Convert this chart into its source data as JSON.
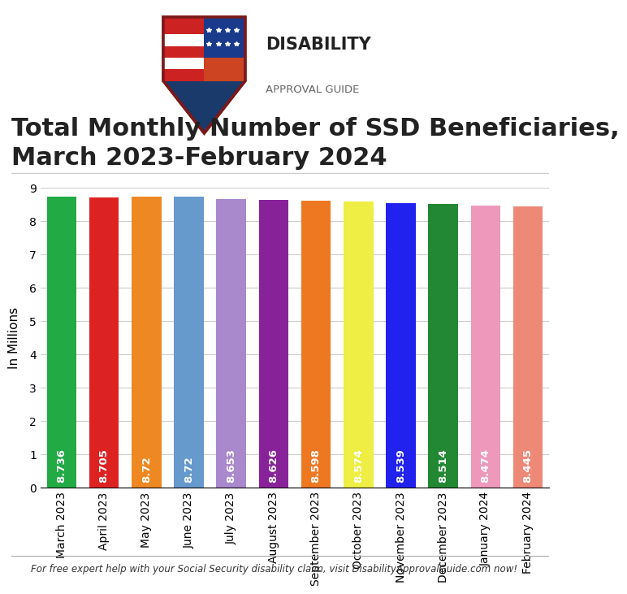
{
  "title": "Total Monthly Number of SSD Beneficiaries,\nMarch 2023-February 2024",
  "ylabel": "In Millions",
  "categories": [
    "March 2023",
    "April 2023",
    "May 2023",
    "June 2023",
    "July 2023",
    "August 2023",
    "September 2023",
    "October 2023",
    "November 2023",
    "December 2023",
    "January 2024",
    "February 2024"
  ],
  "values": [
    8.736,
    8.705,
    8.72,
    8.72,
    8.653,
    8.626,
    8.598,
    8.574,
    8.539,
    8.514,
    8.474,
    8.445
  ],
  "bar_colors": [
    "#22aa44",
    "#dd2222",
    "#ee8822",
    "#6699cc",
    "#aa88cc",
    "#882299",
    "#ee7722",
    "#eeee44",
    "#2222ee",
    "#228833",
    "#ee99bb",
    "#ee8877"
  ],
  "value_colors": [
    "white",
    "white",
    "white",
    "white",
    "white",
    "white",
    "white",
    "white",
    "white",
    "white",
    "white",
    "white"
  ],
  "ylim": [
    0,
    9
  ],
  "yticks": [
    0,
    1,
    2,
    3,
    4,
    5,
    6,
    7,
    8,
    9
  ],
  "background_color": "#ffffff",
  "footer_text": "For free expert help with your Social Security disability claim, visit DisabilityApprovalGuide.com now!",
  "title_fontsize": 22,
  "ylabel_fontsize": 11,
  "tick_fontsize": 10,
  "value_fontsize": 9.5,
  "logo_text1": "DISABILITY",
  "logo_text2": "APPROVAL GUIDE"
}
